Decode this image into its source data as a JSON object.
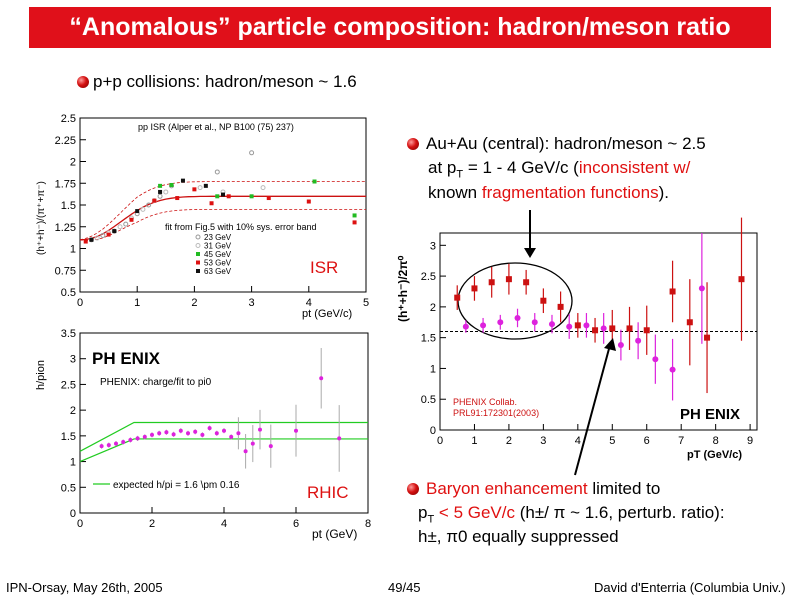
{
  "title": "“Anomalous” particle composition: hadron/meson ratio",
  "bullets": {
    "pp": "p+p collisions: hadron/meson ~ 1.6",
    "auau_l1": "Au+Au (central): hadron/meson ~ 2.5",
    "auau_l2a": "at p",
    "auau_l2sub": "T",
    "auau_l2b": " = 1 - 4 GeV/c (",
    "auau_l2red": "inconsistent w/",
    "auau_l3a": "known ",
    "auau_l3red": "fragmentation functions",
    "auau_l3b": ").",
    "baryon_red": "Baryon enhancement",
    "baryon_l1b": " limited to",
    "baryon_l2a": "p",
    "baryon_l2sub": "T",
    "baryon_l2red": " < 5 GeV/c",
    "baryon_l2b": " (h±/ π ~ 1.6, perturb. ratio):",
    "baryon_l3": "h±, π0  equally suppressed"
  },
  "footer": {
    "left": "IPN-Orsay, May 26th, 2005",
    "center": "49/45",
    "right": "David d'Enterria (Columbia Univ.)"
  },
  "chart_data": [
    {
      "type": "scatter",
      "label": "ISR",
      "title": "pp ISR (Alper et al., NP B100 (75) 237)",
      "xlabel": "pt (GeV/c)",
      "ylabel": "(h⁺+h⁻)/(π⁺+π⁻)",
      "xlim": [
        0,
        5
      ],
      "ylim": [
        0.5,
        2.5
      ],
      "xticks": [
        "0",
        "1",
        "2",
        "3",
        "4",
        "5"
      ],
      "yticks": [
        "0.5",
        "0.75",
        "1",
        "1.25",
        "1.5",
        "1.75",
        "2",
        "2.25",
        "2.5"
      ],
      "fit_label": "fit from Fig.5 with 10% sys. error band",
      "legend": [
        "23 GeV",
        "31 GeV",
        "45 GeV",
        "53 GeV",
        "63 GeV"
      ],
      "series": [
        {
          "name": "23 GeV",
          "color": "#999999",
          "points": [
            [
              0.2,
              1.1
            ],
            [
              0.4,
              1.15
            ],
            [
              0.6,
              1.2
            ],
            [
              0.8,
              1.28
            ],
            [
              1.0,
              1.4
            ],
            [
              1.2,
              1.5
            ],
            [
              1.4,
              1.6
            ],
            [
              1.6,
              1.72
            ],
            [
              2.4,
              1.88
            ],
            [
              3.0,
              2.1
            ]
          ]
        },
        {
          "name": "31 GeV",
          "color": "#bbbbbb",
          "points": [
            [
              0.3,
              1.12
            ],
            [
              0.5,
              1.18
            ],
            [
              0.7,
              1.25
            ],
            [
              0.9,
              1.35
            ],
            [
              1.1,
              1.45
            ],
            [
              1.3,
              1.55
            ],
            [
              1.5,
              1.65
            ],
            [
              2.1,
              1.7
            ],
            [
              2.5,
              1.65
            ],
            [
              3.2,
              1.7
            ]
          ]
        },
        {
          "name": "45 GeV",
          "color": "#22bb22",
          "points": [
            [
              1.4,
              1.72
            ],
            [
              1.6,
              1.73
            ],
            [
              2.4,
              1.6
            ],
            [
              3.0,
              1.6
            ],
            [
              4.1,
              1.77
            ],
            [
              4.8,
              1.38
            ]
          ]
        },
        {
          "name": "53 GeV",
          "color": "#dd1111",
          "points": [
            [
              0.1,
              1.08
            ],
            [
              0.5,
              1.16
            ],
            [
              0.9,
              1.33
            ],
            [
              1.3,
              1.55
            ],
            [
              1.7,
              1.58
            ],
            [
              2.0,
              1.68
            ],
            [
              2.3,
              1.52
            ],
            [
              2.6,
              1.6
            ],
            [
              3.3,
              1.58
            ],
            [
              4.0,
              1.54
            ],
            [
              4.8,
              1.3
            ]
          ]
        },
        {
          "name": "63 GeV",
          "color": "#111111",
          "points": [
            [
              0.2,
              1.1
            ],
            [
              0.6,
              1.2
            ],
            [
              1.0,
              1.43
            ],
            [
              1.4,
              1.65
            ],
            [
              1.8,
              1.78
            ],
            [
              2.2,
              1.72
            ],
            [
              2.5,
              1.62
            ]
          ]
        }
      ]
    },
    {
      "type": "scatter",
      "label": "RHIC",
      "title": "PHENIX: charge/fit to pi0",
      "xlabel": "pt (GeV)",
      "ylabel": "h/pion",
      "xlim": [
        0,
        8
      ],
      "ylim": [
        0,
        3.5
      ],
      "xticks": [
        "0",
        "2",
        "4",
        "6",
        "8"
      ],
      "yticks": [
        "0",
        "0.5",
        "1",
        "1.5",
        "2",
        "2.5",
        "3",
        "3.5"
      ],
      "legend_line": "expected h/pi = 1.6 \\pm 0.16",
      "logo": "PH ENIX",
      "points": [
        [
          0.6,
          1.3
        ],
        [
          0.8,
          1.32
        ],
        [
          1.0,
          1.35
        ],
        [
          1.2,
          1.38
        ],
        [
          1.4,
          1.42
        ],
        [
          1.6,
          1.45
        ],
        [
          1.8,
          1.48
        ],
        [
          2.0,
          1.52
        ],
        [
          2.2,
          1.55
        ],
        [
          2.4,
          1.57
        ],
        [
          2.6,
          1.53
        ],
        [
          2.8,
          1.6
        ],
        [
          3.0,
          1.55
        ],
        [
          3.2,
          1.58
        ],
        [
          3.4,
          1.52
        ],
        [
          3.6,
          1.65
        ],
        [
          3.8,
          1.55
        ],
        [
          4.0,
          1.6
        ],
        [
          4.2,
          1.48
        ],
        [
          4.4,
          1.55
        ],
        [
          4.6,
          1.2
        ],
        [
          4.8,
          1.35
        ],
        [
          5.0,
          1.62
        ],
        [
          5.3,
          1.3
        ],
        [
          6.0,
          1.6
        ],
        [
          6.7,
          2.62
        ],
        [
          7.2,
          1.45
        ]
      ]
    },
    {
      "type": "scatter",
      "label": "AuAu",
      "xlabel": "pT  (GeV/c)",
      "ylabel": "(h⁺+h⁻)/2π⁰",
      "xlim": [
        0,
        9.2
      ],
      "ylim": [
        0,
        3.2
      ],
      "xticks": [
        "0",
        "1",
        "2",
        "3",
        "4",
        "5",
        "6",
        "7",
        "8",
        "9"
      ],
      "yticks": [
        "0",
        "0.5",
        "1",
        "1.5",
        "2",
        "2.5",
        "3"
      ],
      "annot1": "PHENIX Collab.",
      "annot2": "PRL91:172301(2003)",
      "logo": "PH ENIX",
      "ref_line": 1.6,
      "series": [
        {
          "name": "red",
          "color": "#cc1111",
          "points": [
            [
              0.5,
              2.15,
              0.2
            ],
            [
              1.0,
              2.3,
              0.2
            ],
            [
              1.5,
              2.4,
              0.25
            ],
            [
              2.0,
              2.45,
              0.25
            ],
            [
              2.5,
              2.4,
              0.2
            ],
            [
              3.0,
              2.1,
              0.2
            ],
            [
              3.5,
              2.0,
              0.25
            ],
            [
              4.0,
              1.7,
              0.2
            ],
            [
              4.5,
              1.62,
              0.2
            ],
            [
              5.0,
              1.65,
              0.3
            ],
            [
              5.5,
              1.65,
              0.35
            ],
            [
              6.0,
              1.62,
              0.4
            ],
            [
              6.75,
              2.25,
              0.5
            ],
            [
              7.25,
              1.75,
              0.7
            ],
            [
              7.75,
              1.5,
              0.9
            ],
            [
              8.75,
              2.45,
              1.0
            ]
          ]
        },
        {
          "name": "magenta",
          "color": "#dd22dd",
          "points": [
            [
              0.75,
              1.68,
              0.1
            ],
            [
              1.25,
              1.7,
              0.12
            ],
            [
              1.75,
              1.75,
              0.12
            ],
            [
              2.25,
              1.82,
              0.15
            ],
            [
              2.75,
              1.75,
              0.15
            ],
            [
              3.25,
              1.72,
              0.15
            ],
            [
              3.75,
              1.68,
              0.2
            ],
            [
              4.25,
              1.7,
              0.2
            ],
            [
              4.75,
              1.65,
              0.25
            ],
            [
              5.25,
              1.38,
              0.25
            ],
            [
              5.75,
              1.45,
              0.3
            ],
            [
              6.25,
              1.15,
              0.4
            ],
            [
              6.75,
              0.98,
              0.5
            ],
            [
              7.6,
              2.3,
              0.9
            ]
          ]
        }
      ]
    }
  ]
}
